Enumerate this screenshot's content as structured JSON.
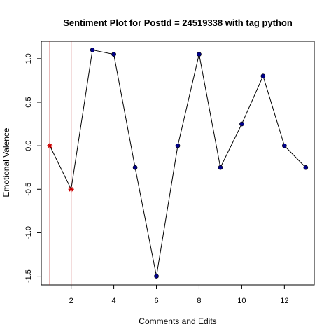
{
  "chart_data": {
    "type": "line",
    "title": "Sentiment Plot for PostId =  24519338  with tag  python",
    "xlabel": "Comments and Edits",
    "ylabel": "Emotional Valence",
    "xlim": [
      0.6,
      13.4
    ],
    "ylim": [
      -1.6,
      1.2
    ],
    "x_ticks": [
      2,
      4,
      6,
      8,
      10,
      12
    ],
    "y_ticks": [
      -1.5,
      -1.0,
      -0.5,
      0.0,
      0.5,
      1.0
    ],
    "x_tick_labels": [
      "2",
      "4",
      "6",
      "8",
      "10",
      "12"
    ],
    "y_tick_labels": [
      "-1.5",
      "-1.0",
      "-0.5",
      "0.0",
      "0.5",
      "1.0"
    ],
    "x": [
      1,
      2,
      3,
      4,
      5,
      6,
      7,
      8,
      9,
      10,
      11,
      12,
      13
    ],
    "y": [
      0,
      -0.5,
      1.1,
      1.05,
      -0.25,
      -1.5,
      0,
      1.05,
      -0.25,
      0.25,
      0.8,
      0,
      -0.25
    ],
    "highlighted_x": [
      1,
      2
    ],
    "vertical_lines_x": [
      1,
      2
    ],
    "grid": false,
    "colors": {
      "line": "#000000",
      "point": "#00008b",
      "highlight": "#cc0000",
      "vline": "#b22222"
    }
  }
}
